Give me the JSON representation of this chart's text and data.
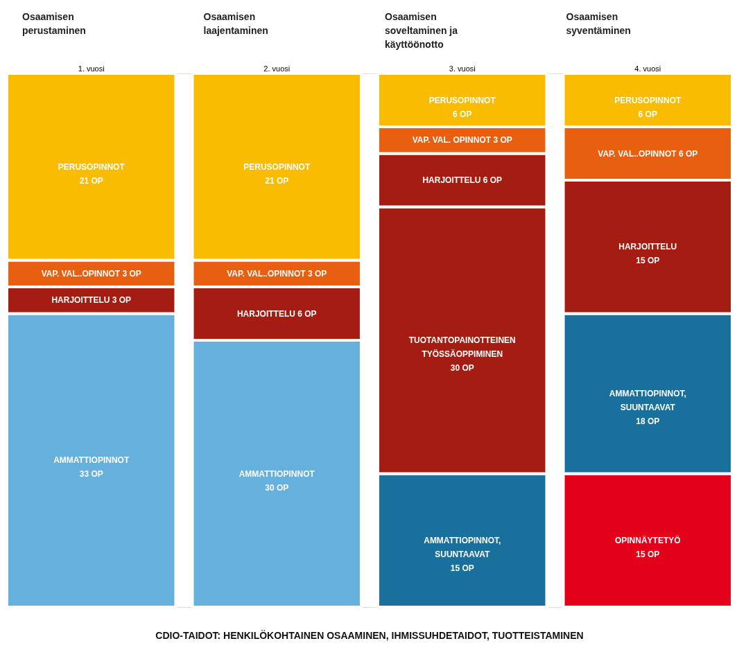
{
  "chart_data": {
    "type": "bar",
    "stacked": true,
    "tick_labels": "x",
    "categories": [
      "1. vuosi",
      "2. vuosi",
      "3. vuosi",
      "4. vuosi"
    ],
    "ylim": [
      0,
      60
    ],
    "series": [
      {
        "color": "#e2001a",
        "values": [
          null,
          null,
          null,
          15
        ],
        "value_labels": [
          null,
          null,
          null,
          "OPINNÄYTETYÖ\n15 OP"
        ]
      },
      {
        "color": "#1a709d",
        "values": [
          null,
          null,
          15,
          18
        ],
        "value_labels": [
          null,
          null,
          "AMMATTIOPINNOT,\nSUUNTAAVAT\n15 OP",
          "AMMATTIOPINNOT,\nSUUNTAAVAT\n18 OP"
        ]
      },
      {
        "color": "#65b0dc",
        "values": [
          33,
          30,
          null,
          null
        ],
        "value_labels": [
          "AMMATTIOPINNOT\n33 OP",
          "AMMATTIOPINNOT\n30 OP",
          null,
          null
        ]
      },
      {
        "color": "#a51d12",
        "values": [
          null,
          null,
          30,
          null
        ],
        "value_labels": [
          null,
          null,
          "TUOTANTOPAINOTTEINEN\nTYÖSSÄOPPIMINEN\n30 OP",
          null
        ]
      },
      {
        "color": "#a51d12",
        "values": [
          3,
          6,
          6,
          15
        ],
        "value_labels": [
          "HARJOITTELU 3 OP",
          "HARJOITTELU 6 OP",
          "HARJOITTELU 6 OP",
          "HARJOITTELU\n15 OP"
        ]
      },
      {
        "color": "#e8600f",
        "values": [
          3,
          3,
          3,
          6
        ],
        "value_labels": [
          "VAP. VAL..OPINNOT 3 OP",
          "VAP. VAL..OPINNOT 3 OP",
          "VAP. VAL. OPINNOT 3 OP",
          "VAP. VAL..OPINNOT 6 OP"
        ]
      },
      {
        "color": "#f9bc00",
        "values": [
          21,
          21,
          6,
          6
        ],
        "value_labels": [
          "PERUSOPINNOT\n21 OP",
          "PERUSOPINNOT\n21 OP",
          "PERUSOPINNOT\n6 OP",
          "PERUSOPINNOT\n6 OP"
        ]
      }
    ],
    "annotations": [
      "Osaamisen\nperustaminen",
      "Osaamisen\nlaajentaminen",
      "Osaamisen\nsoveltaminen ja\nkäyttöönotto",
      "Osaamisen\nsyventäminen",
      "CDIO-TAIDOT: HENKILÖKOHTAINEN OSAAMINEN, IHMISSUHDETAIDOT, TUOTTEISTAMINEN"
    ]
  }
}
